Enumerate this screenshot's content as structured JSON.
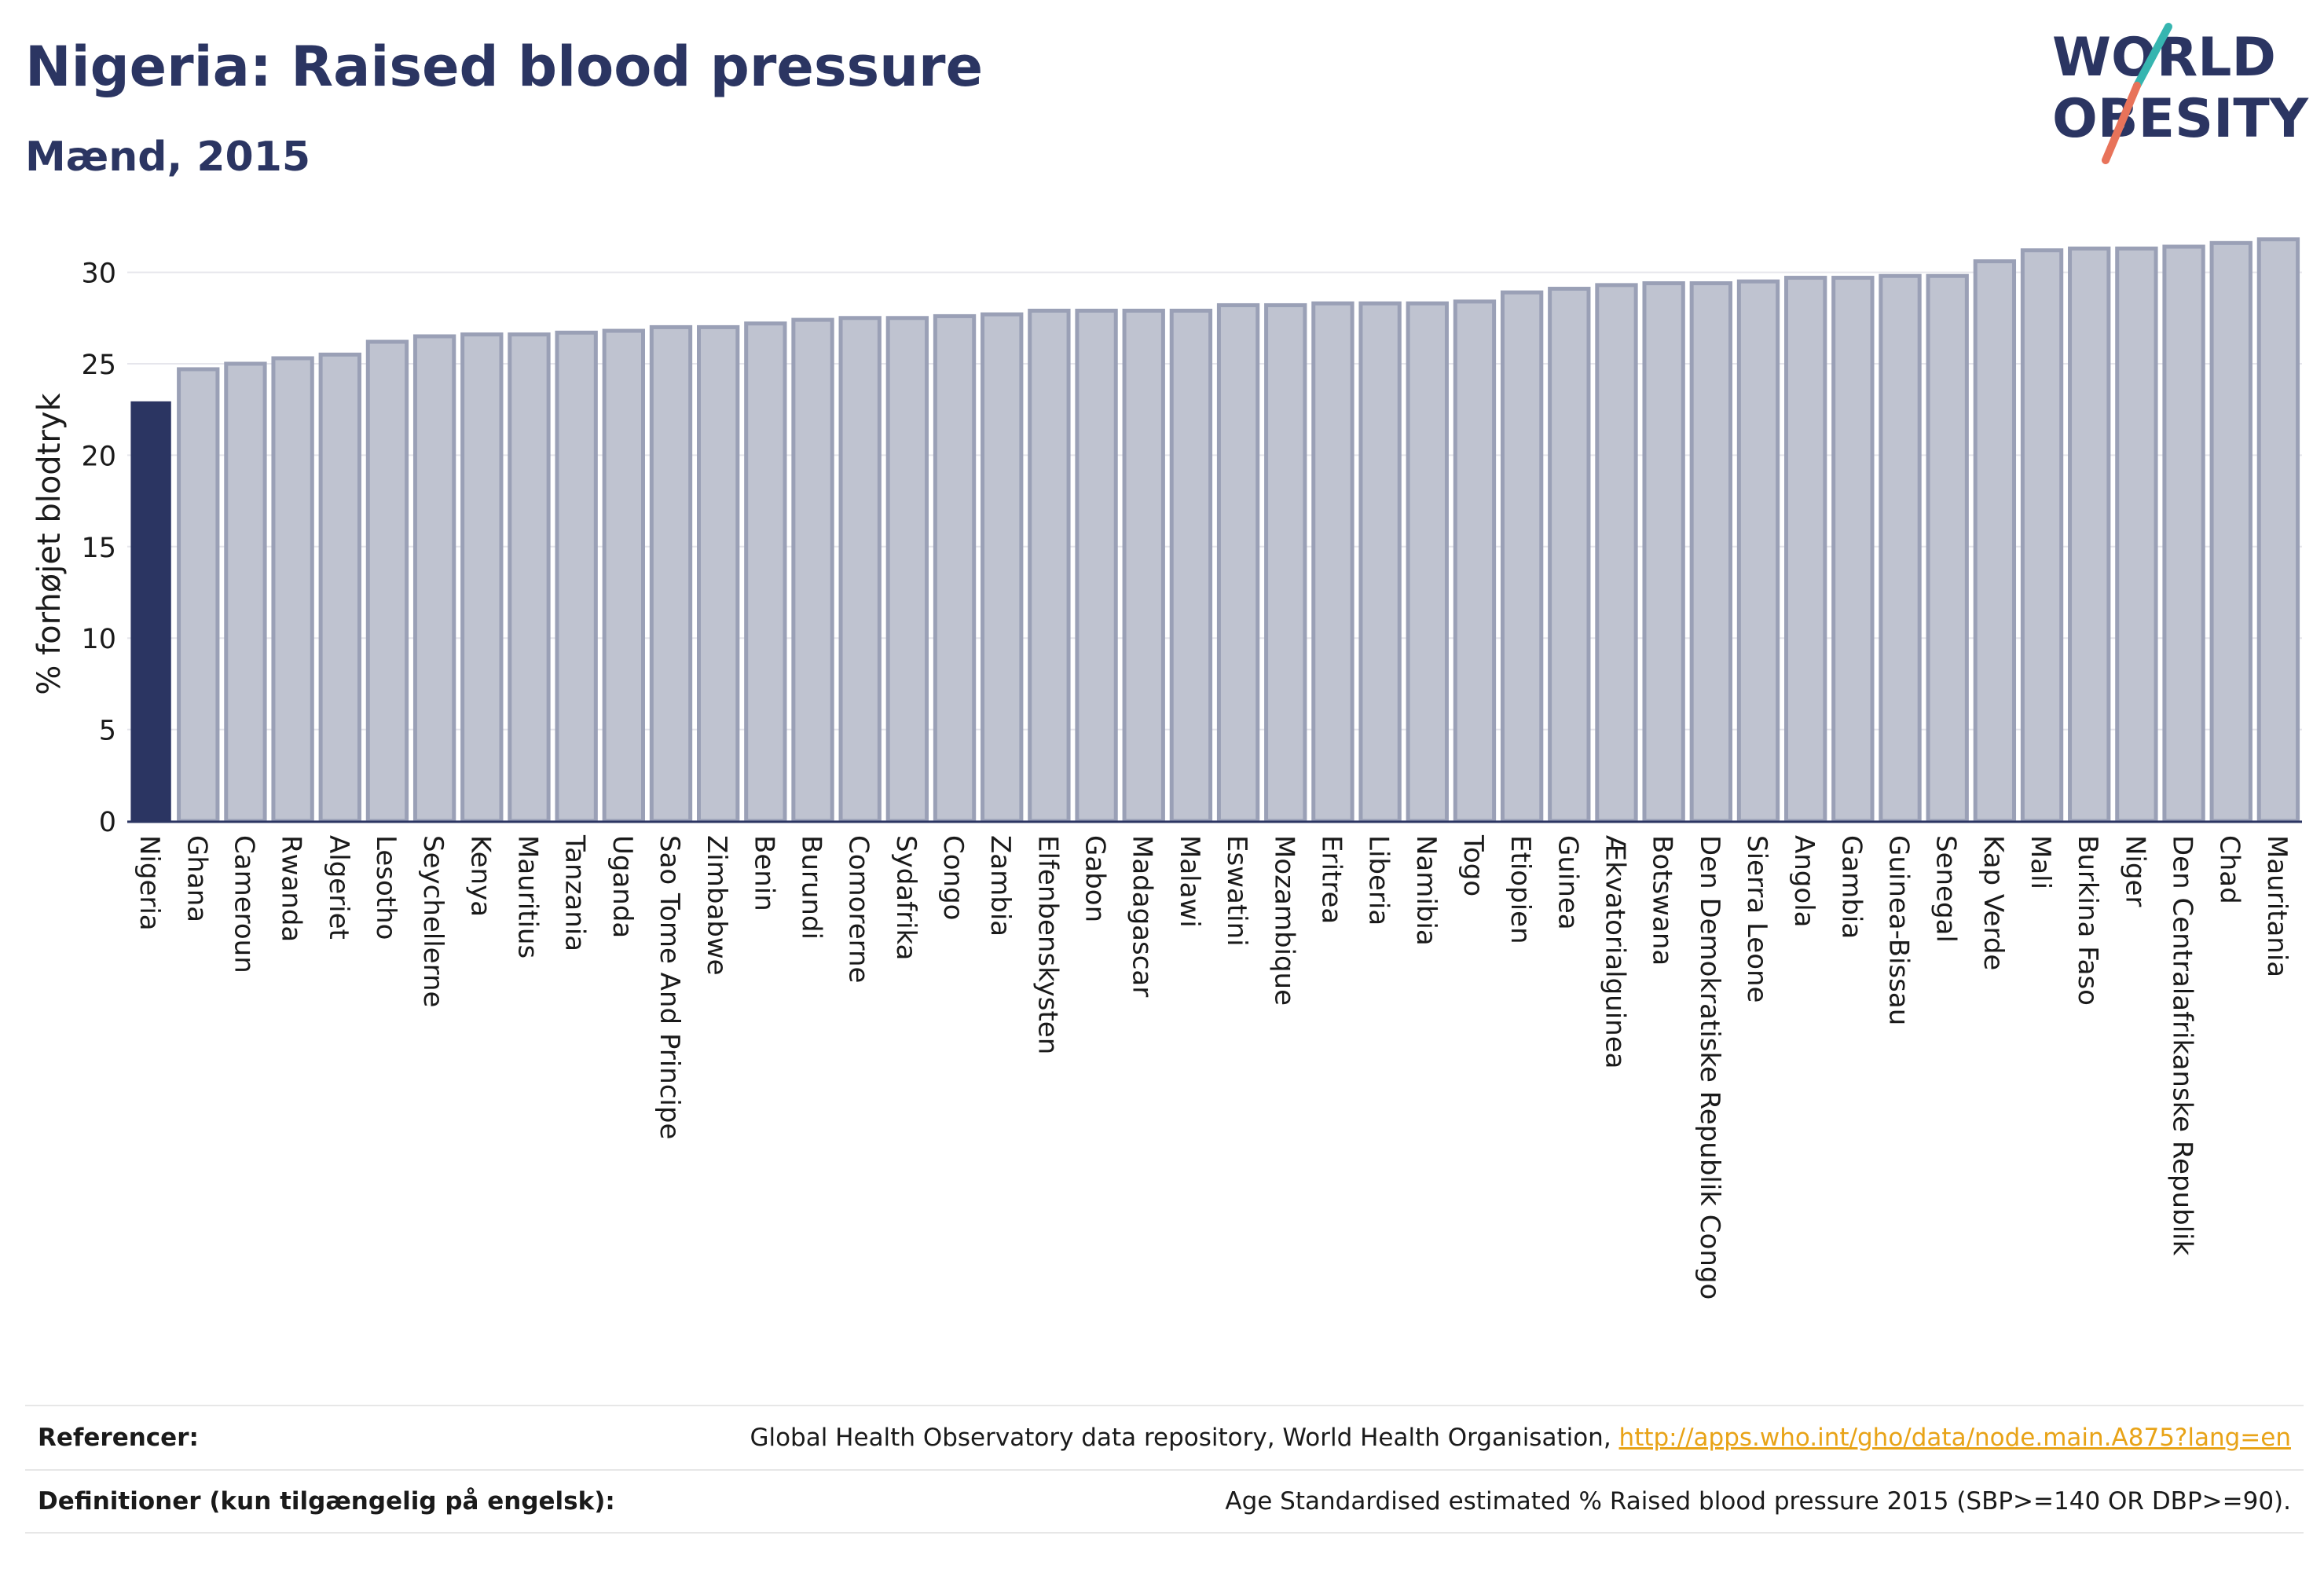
{
  "header": {
    "title": "Nigeria: Raised blood pressure",
    "subtitle": "Mænd, 2015"
  },
  "logo": {
    "line1": "WORLD",
    "line2": "OBESITY"
  },
  "colors": {
    "highlight": "#2b3562",
    "bar_fill": "#bfc3d0",
    "bar_stroke": "#9aa0b6",
    "logo_teal": "#36b5b0",
    "logo_coral": "#e8735a",
    "link": "#e8a317"
  },
  "chart_data": {
    "type": "bar",
    "ylabel": "% forhøjet blodtryk",
    "ylim": [
      0,
      32
    ],
    "yticks": [
      0,
      5,
      10,
      15,
      20,
      25,
      30
    ],
    "grid": true,
    "highlight_category": "Nigeria",
    "categories": [
      "Nigeria",
      "Ghana",
      "Cameroun",
      "Rwanda",
      "Algeriet",
      "Lesotho",
      "Seychellerne",
      "Kenya",
      "Mauritius",
      "Tanzania",
      "Uganda",
      "Sao Tome And Principe",
      "Zimbabwe",
      "Benin",
      "Burundi",
      "Comorerne",
      "Sydafrika",
      "Congo",
      "Zambia",
      "Elfenbenskysten",
      "Gabon",
      "Madagascar",
      "Malawi",
      "Eswatini",
      "Mozambique",
      "Eritrea",
      "Liberia",
      "Namibia",
      "Togo",
      "Etiopien",
      "Guinea",
      "Ækvatorialguinea",
      "Botswana",
      "Den Demokratiske Republik Congo",
      "Sierra Leone",
      "Angola",
      "Gambia",
      "Guinea-Bissau",
      "Senegal",
      "Kap Verde",
      "Mali",
      "Burkina Faso",
      "Niger",
      "Den Centralafrikanske Republik",
      "Chad",
      "Mauritania"
    ],
    "values": [
      22.9,
      24.7,
      25.0,
      25.3,
      25.5,
      26.2,
      26.5,
      26.6,
      26.6,
      26.7,
      26.8,
      27.0,
      27.0,
      27.2,
      27.4,
      27.5,
      27.5,
      27.6,
      27.7,
      27.9,
      27.9,
      27.9,
      27.9,
      28.2,
      28.2,
      28.3,
      28.3,
      28.3,
      28.4,
      28.9,
      29.1,
      29.3,
      29.4,
      29.4,
      29.5,
      29.7,
      29.7,
      29.8,
      29.8,
      30.6,
      31.2,
      31.3,
      31.3,
      31.4,
      31.6,
      31.8
    ]
  },
  "footer": {
    "references_label": "Referencer:",
    "references_text": "Global Health Observatory data repository, World Health Organisation, ",
    "references_link": "http://apps.who.int/gho/data/node.main.A875?lang=en",
    "definitions_label": "Definitioner (kun tilgængelig på engelsk):",
    "definitions_text": "Age Standardised estimated % Raised blood pressure 2015 (SBP>=140 OR DBP>=90)."
  }
}
